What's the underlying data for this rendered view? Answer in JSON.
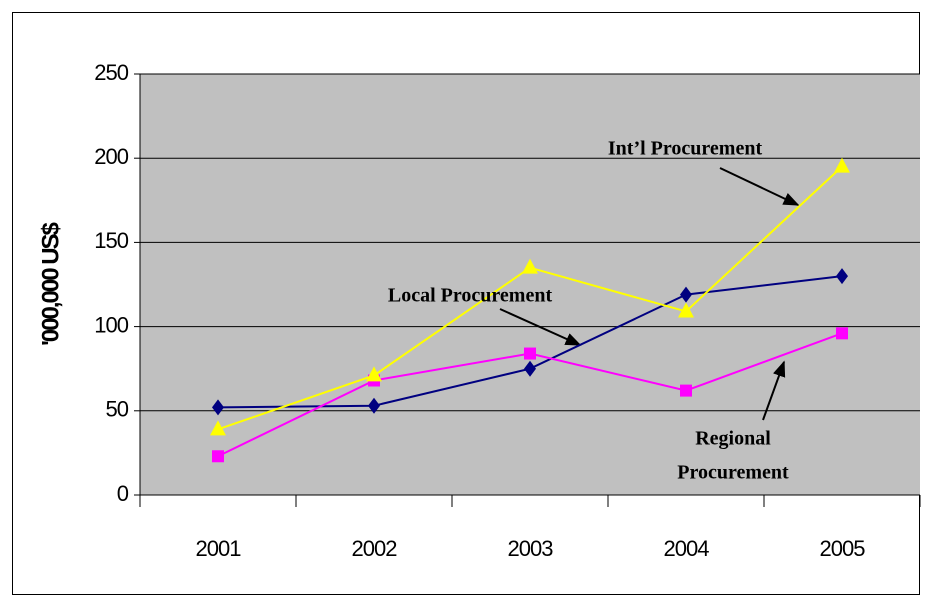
{
  "chart_data": {
    "type": "line",
    "y_label": "'000,000 US$",
    "categories": [
      "2001",
      "2002",
      "2003",
      "2004",
      "2005"
    ],
    "series": [
      {
        "color": "#000080",
        "marker": "diamond",
        "values": [
          52,
          53,
          75,
          119,
          130
        ]
      },
      {
        "color": "#ff00ff",
        "marker": "square",
        "values": [
          23,
          68,
          84,
          62,
          96
        ]
      },
      {
        "color": "#ffff00",
        "marker": "triangle",
        "values": [
          39,
          71,
          135,
          109,
          195
        ]
      }
    ],
    "ylim": [
      0,
      250
    ],
    "yticks": [
      0,
      50,
      100,
      150,
      200,
      250
    ],
    "grid": true,
    "plot_background": "#c0c0c0",
    "annotations": [
      {
        "lines": [
          "Int’l Procurement"
        ]
      },
      {
        "lines": [
          "Local Procurement"
        ]
      },
      {
        "lines": [
          "Regional",
          "Procurement"
        ]
      }
    ]
  }
}
